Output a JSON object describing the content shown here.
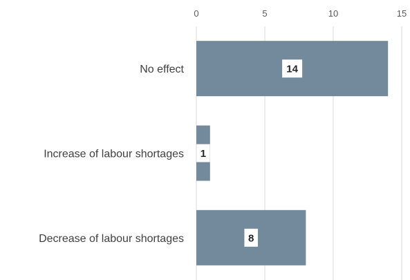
{
  "chart_data": {
    "type": "bar",
    "orientation": "horizontal",
    "categories": [
      "No effect",
      "Increase of labour shortages",
      "Decrease of labour shortages"
    ],
    "values": [
      14,
      1,
      8
    ],
    "data_labels": [
      "14",
      "1",
      "8"
    ],
    "xlim": [
      0,
      15
    ],
    "x_ticks": [
      0,
      5,
      10,
      15
    ],
    "x_tick_labels": [
      "0",
      "5",
      "10",
      "15"
    ],
    "x_axis_position": "top",
    "grid": true,
    "legend": "none",
    "title": "",
    "xlabel": "",
    "ylabel": "",
    "colors": {
      "bar": "#738a9c",
      "label_box": "#ffffff",
      "grid": "#d9d9d9"
    }
  }
}
